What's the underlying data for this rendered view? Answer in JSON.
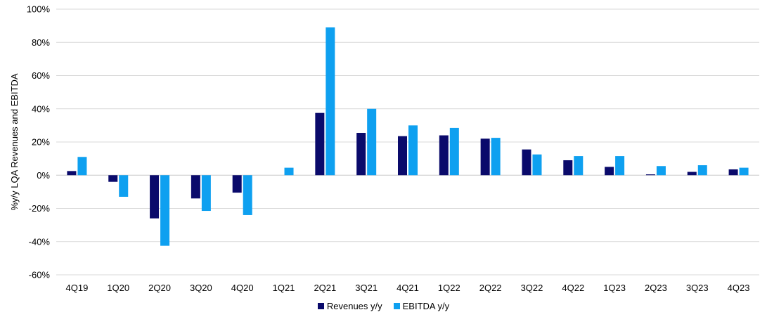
{
  "chart_data": {
    "type": "bar",
    "ylabel": "%y/y LQA Revenues and EBITDA",
    "xlabel": "",
    "ylim": [
      -60,
      100
    ],
    "yticks": [
      -60,
      -40,
      -20,
      0,
      20,
      40,
      60,
      80,
      100
    ],
    "ytick_labels": [
      "-60%",
      "-40%",
      "-20%",
      "0%",
      "20%",
      "40%",
      "60%",
      "80%",
      "100%"
    ],
    "grid": true,
    "legend_position": "bottom",
    "categories": [
      "4Q19",
      "1Q20",
      "2Q20",
      "3Q20",
      "4Q20",
      "1Q21",
      "2Q21",
      "3Q21",
      "4Q21",
      "1Q22",
      "2Q22",
      "3Q22",
      "4Q22",
      "1Q23",
      "2Q23",
      "3Q23",
      "4Q23"
    ],
    "series": [
      {
        "name": "Revenues y/y",
        "color": "#0a0a6b",
        "values": [
          2.5,
          -4,
          -26,
          -14,
          -10.5,
          0,
          37.5,
          25.5,
          23.5,
          24,
          22,
          15.5,
          9,
          5,
          0.5,
          2,
          3.5
        ]
      },
      {
        "name": "EBITDA y/y",
        "color": "#0ea0f0",
        "values": [
          11,
          -13,
          -42.5,
          -21.5,
          -24,
          4.5,
          89,
          40,
          30,
          28.5,
          22.5,
          12.5,
          11.5,
          11.5,
          5.5,
          6,
          4.5
        ]
      }
    ]
  }
}
